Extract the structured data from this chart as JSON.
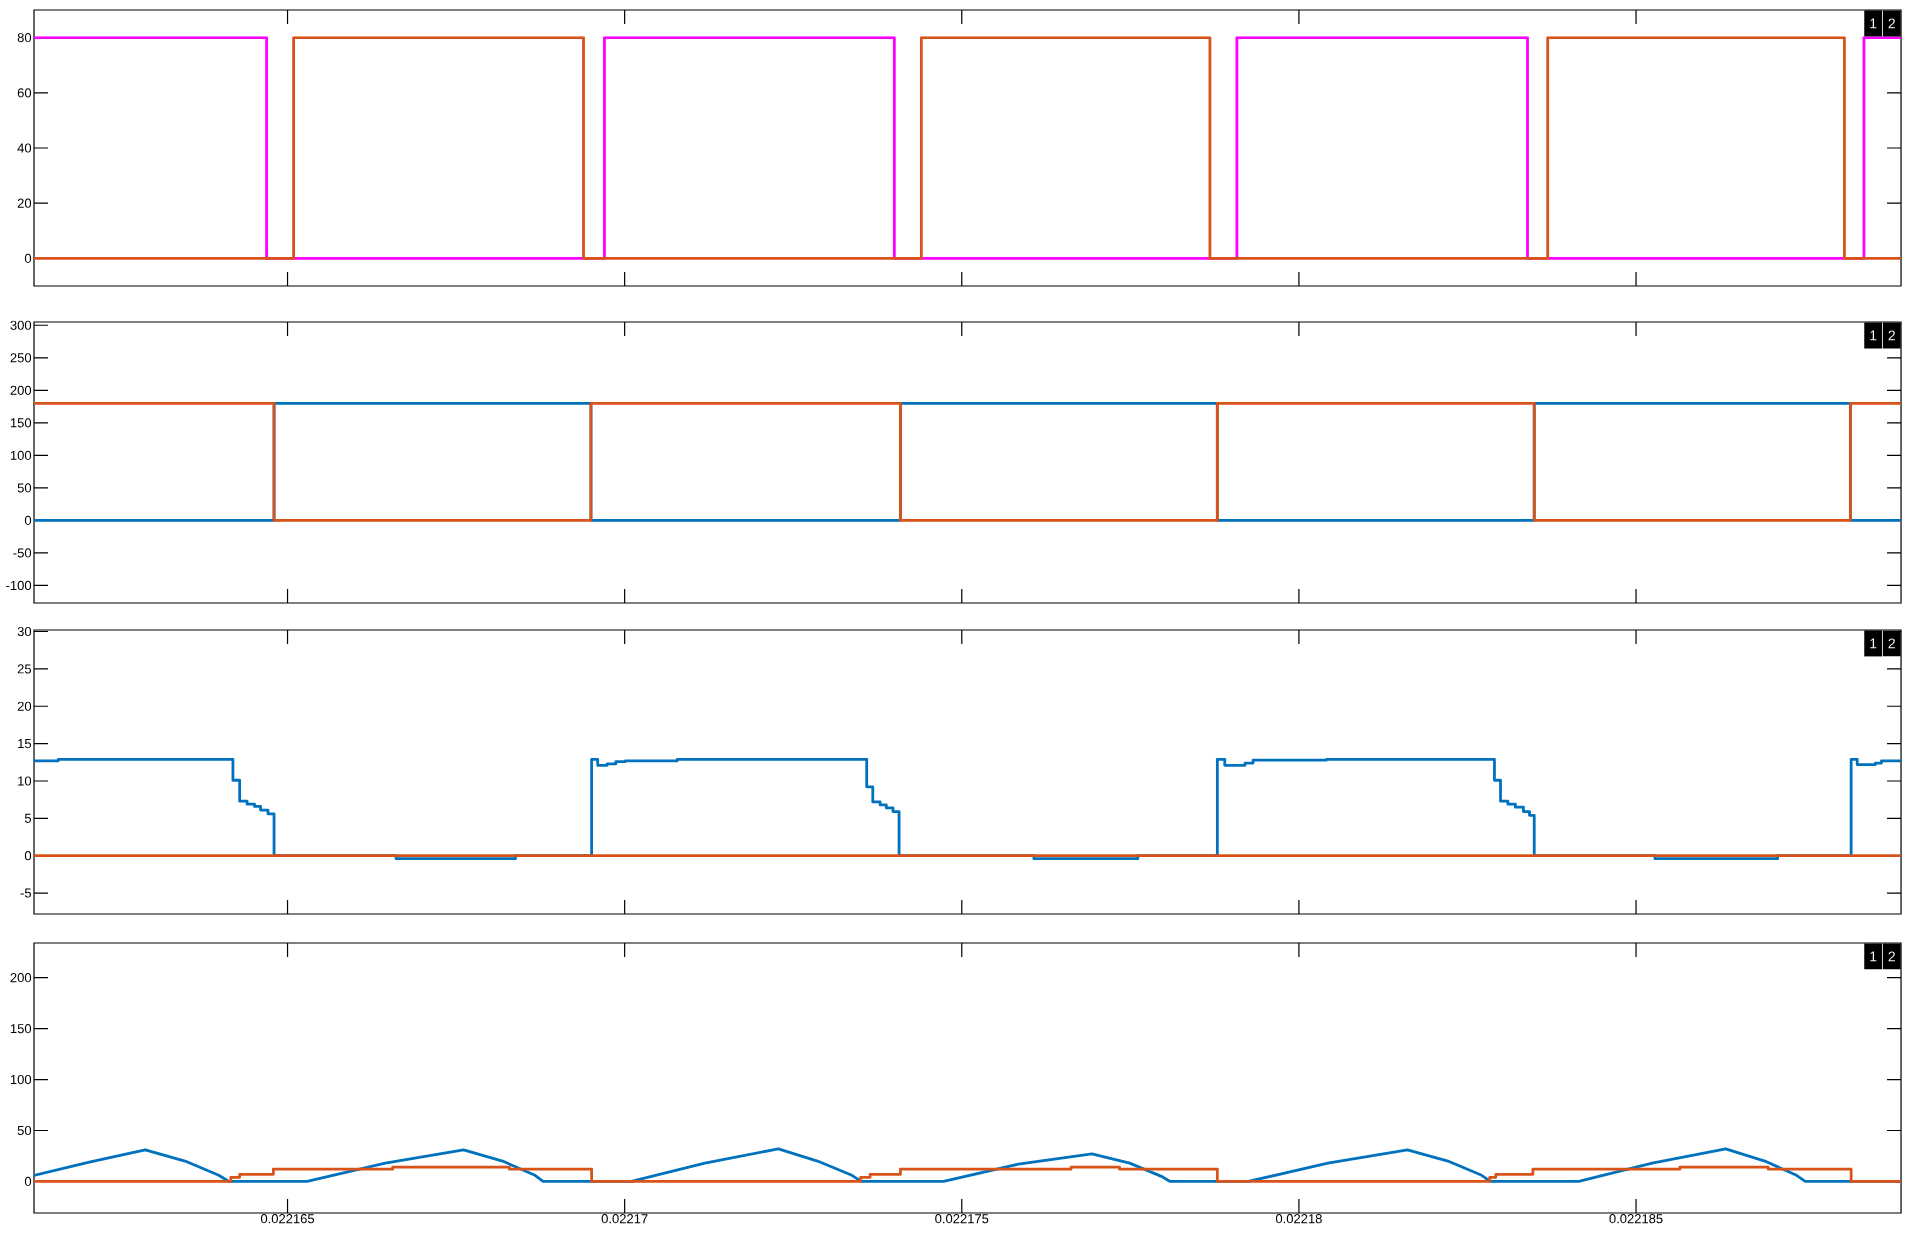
{
  "chart_data": [
    {
      "type": "step",
      "xlim": [
        0.02216124,
        0.02218893
      ],
      "xticks": [
        0.022165,
        0.02217,
        0.022175,
        0.02218,
        0.022185
      ],
      "ylim": [
        -10,
        90
      ],
      "yticks": [
        0,
        20,
        40,
        60,
        80
      ],
      "tick_labels": "y",
      "annotations": [
        "1",
        "2"
      ],
      "series": [
        {
          "color": "#ff00ff",
          "x": [
            0.02216124,
            0.02216469,
            0.0221697,
            0.022174,
            0.02217908,
            0.02218339,
            0.02218838,
            0.02218893
          ],
          "values": [
            80,
            0,
            80,
            0,
            80,
            0,
            80,
            80
          ]
        },
        {
          "color": "#d95319",
          "x": [
            0.02216124,
            0.02216509,
            0.02216939,
            0.0221744,
            0.02217868,
            0.02218369,
            0.02218809,
            0.02218893
          ],
          "values": [
            0,
            80,
            0,
            80,
            0,
            80,
            0,
            0
          ]
        }
      ]
    },
    {
      "type": "step",
      "xlim": [
        0.02216124,
        0.02218893
      ],
      "xticks": [
        0.022165,
        0.02217,
        0.022175,
        0.02218,
        0.022185
      ],
      "ylim": [
        -127,
        305
      ],
      "yticks": [
        -100,
        -50,
        0,
        50,
        100,
        150,
        200,
        250,
        300
      ],
      "tick_labels": "y",
      "annotations": [
        "1",
        "2"
      ],
      "series": [
        {
          "color": "#0072bd",
          "x": [
            0.02216124,
            0.0221648,
            0.0221695,
            0.02217409,
            0.02217879,
            0.02218349,
            0.02218818,
            0.02218893
          ],
          "values": [
            0,
            180,
            0,
            180,
            0,
            180,
            0,
            0
          ]
        },
        {
          "color": "#d95319",
          "x": [
            0.02216124,
            0.0221648,
            0.0221695,
            0.02217409,
            0.02217879,
            0.02218349,
            0.02218818,
            0.02218893
          ],
          "values": [
            180,
            0,
            180,
            0,
            180,
            0,
            180,
            180
          ]
        }
      ]
    },
    {
      "type": "step",
      "xlim": [
        0.02216124,
        0.02218893
      ],
      "xticks": [
        0.022165,
        0.02217,
        0.022175,
        0.02218,
        0.022185
      ],
      "ylim": [
        -7.8,
        30.2
      ],
      "yticks": [
        -5,
        0,
        5,
        10,
        15,
        20,
        25,
        30
      ],
      "tick_labels": "y",
      "annotations": [
        "1",
        "2"
      ],
      "series": [
        {
          "color": "#0072bd",
          "x": [
            0.02216124,
            0.0221616,
            0.02216419,
            0.02216429,
            0.0221644,
            0.02216451,
            0.0221646,
            0.02216471,
            0.0221648,
            0.02216661,
            0.02216838,
            0.02216951,
            0.0221696,
            0.02216974,
            0.02216987,
            0.02217001,
            0.02217078,
            0.02217359,
            0.02217368,
            0.02217379,
            0.02217388,
            0.02217398,
            0.02217407,
            0.02217607,
            0.02217761,
            0.02217879,
            0.0221789,
            0.0221792,
            0.02217932,
            0.02218041,
            0.0221829,
            0.02218299,
            0.0221831,
            0.02218321,
            0.02218333,
            0.02218342,
            0.02218349,
            0.02218528,
            0.0221871,
            0.02218819,
            0.02218828,
            0.02218855,
            0.02218864,
            0.02218893
          ],
          "values": [
            12.7,
            12.9,
            10.1,
            7.3,
            6.9,
            6.6,
            6.1,
            5.6,
            0,
            -0.4,
            0,
            12.9,
            12.1,
            12.3,
            12.6,
            12.7,
            12.9,
            9.2,
            7.2,
            6.8,
            6.4,
            5.9,
            0,
            -0.4,
            0,
            12.9,
            12.1,
            12.4,
            12.8,
            12.9,
            10.1,
            7.3,
            6.9,
            6.5,
            5.9,
            5.4,
            0,
            -0.4,
            0,
            12.9,
            12.2,
            12.4,
            12.7,
            12.7
          ]
        },
        {
          "color": "#d95319",
          "x": [
            0.02216124,
            0.02218893
          ],
          "values": [
            0,
            0
          ]
        }
      ]
    },
    {
      "type": "step",
      "xlim": [
        0.02216124,
        0.02218893
      ],
      "xticks": [
        0.022165,
        0.02217,
        0.022175,
        0.02218,
        0.022185
      ],
      "ylim": [
        -31,
        234
      ],
      "yticks": [
        0,
        50,
        100,
        150,
        200
      ],
      "annotations": [
        "1",
        "2"
      ],
      "series": [
        {
          "type": "line",
          "color": "#0072bd",
          "x": [
            0.02216124,
            0.02216206,
            0.02216289,
            0.02216348,
            0.02216398,
            0.02216413,
            0.02216529,
            0.02216645,
            0.02216761,
            0.02216819,
            0.02216867,
            0.02216879,
            0.0221701,
            0.02217119,
            0.02217228,
            0.02217286,
            0.02217337,
            0.02217351,
            0.02217473,
            0.02217584,
            0.02217693,
            0.02217749,
            0.02217796,
            0.02217809,
            0.02217925,
            0.02218043,
            0.02218161,
            0.02218221,
            0.02218271,
            0.02218284,
            0.02218415,
            0.02218524,
            0.02218633,
            0.02218691,
            0.02218738,
            0.02218751,
            0.02218893
          ],
          "values": [
            6,
            19,
            31,
            20,
            6,
            0,
            0,
            18,
            31,
            20,
            6,
            0,
            0,
            18,
            32,
            20,
            6,
            0,
            0,
            17,
            27,
            18,
            5,
            0,
            0,
            18,
            31,
            20,
            6,
            0,
            0,
            18,
            32,
            20,
            6,
            0,
            0
          ]
        },
        {
          "type": "step",
          "color": "#d95319",
          "x": [
            0.02216124,
            0.02216416,
            0.02216429,
            0.02216479,
            0.02216656,
            0.02216829,
            0.02216951,
            0.0221735,
            0.02217364,
            0.02217409,
            0.02217662,
            0.02217734,
            0.02217879,
            0.02218283,
            0.02218292,
            0.02218347,
            0.02218565,
            0.02218696,
            0.02218819,
            0.02218893
          ],
          "values": [
            0,
            4,
            7,
            12,
            14,
            12,
            0,
            4,
            7,
            12,
            14,
            12,
            0,
            4,
            7,
            12,
            14,
            12,
            0,
            0
          ]
        }
      ]
    }
  ]
}
